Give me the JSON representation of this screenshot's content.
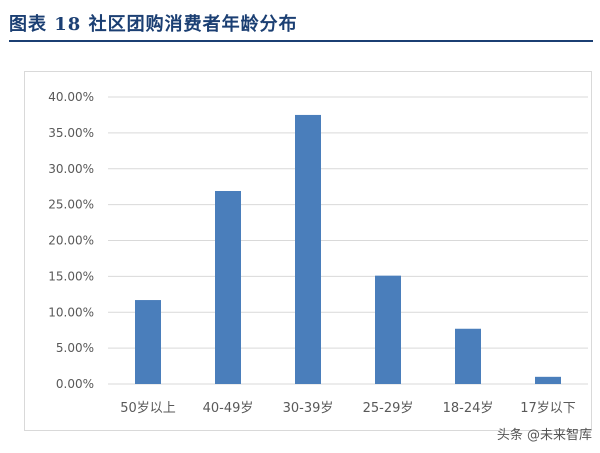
{
  "figure": {
    "title": "图表 18    社区团购消费者年龄分布"
  },
  "watermark": "头条 @未来智库",
  "chart_data": {
    "type": "bar",
    "categories": [
      "50岁以上",
      "40-49岁",
      "30-39岁",
      "25-29岁",
      "18-24岁",
      "17岁以下"
    ],
    "values": [
      11.7,
      26.9,
      37.5,
      15.1,
      7.7,
      1.0
    ],
    "value_format": "percent",
    "ylim": [
      0,
      40
    ],
    "yticks": [
      "0.00%",
      "5.00%",
      "10.00%",
      "15.00%",
      "20.00%",
      "25.00%",
      "30.00%",
      "35.00%",
      "40.00%"
    ],
    "ytick_values": [
      0,
      5,
      10,
      15,
      20,
      25,
      30,
      35,
      40
    ],
    "grid": true,
    "legend": "none",
    "bar_color": "#4a7ebb",
    "grid_color": "#d9d9d9",
    "text_color": "#595959",
    "title": "",
    "xlabel": "",
    "ylabel": ""
  }
}
